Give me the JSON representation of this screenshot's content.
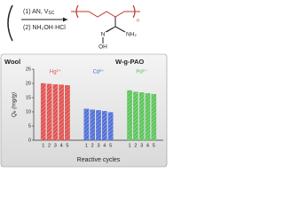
{
  "scheme": {
    "step1": {
      "text": "(1) AN, V",
      "subscript": "SC"
    },
    "step2": "(2) NH₂OH·HCl",
    "atom_n": "N",
    "atom_oh": "OH",
    "atom_nh2": "NH₂",
    "repeat": "n"
  },
  "left_label": "Wool",
  "right_label": "W-g-PAO",
  "chart_data": {
    "type": "grouped_bar",
    "ylabel": "Qₑ (mg/g)",
    "xlabel": "Reactive cycles",
    "categories": [
      "1",
      "2",
      "3",
      "4",
      "5"
    ],
    "series": [
      {
        "name": "Hg²⁺",
        "color": "#e0524f",
        "values": [
          20,
          19.8,
          19.6,
          19.5,
          19.3
        ]
      },
      {
        "name": "Cd²⁺",
        "color": "#4f6fd8",
        "values": [
          11,
          10.7,
          10.5,
          10.2,
          9.8
        ]
      },
      {
        "name": "Pd²⁺",
        "color": "#5cc45a",
        "values": [
          17.5,
          17,
          16.8,
          16.5,
          16.2
        ]
      }
    ],
    "ylim": [
      0,
      25
    ],
    "yticks": [
      0,
      5,
      10,
      15,
      20,
      25
    ]
  }
}
